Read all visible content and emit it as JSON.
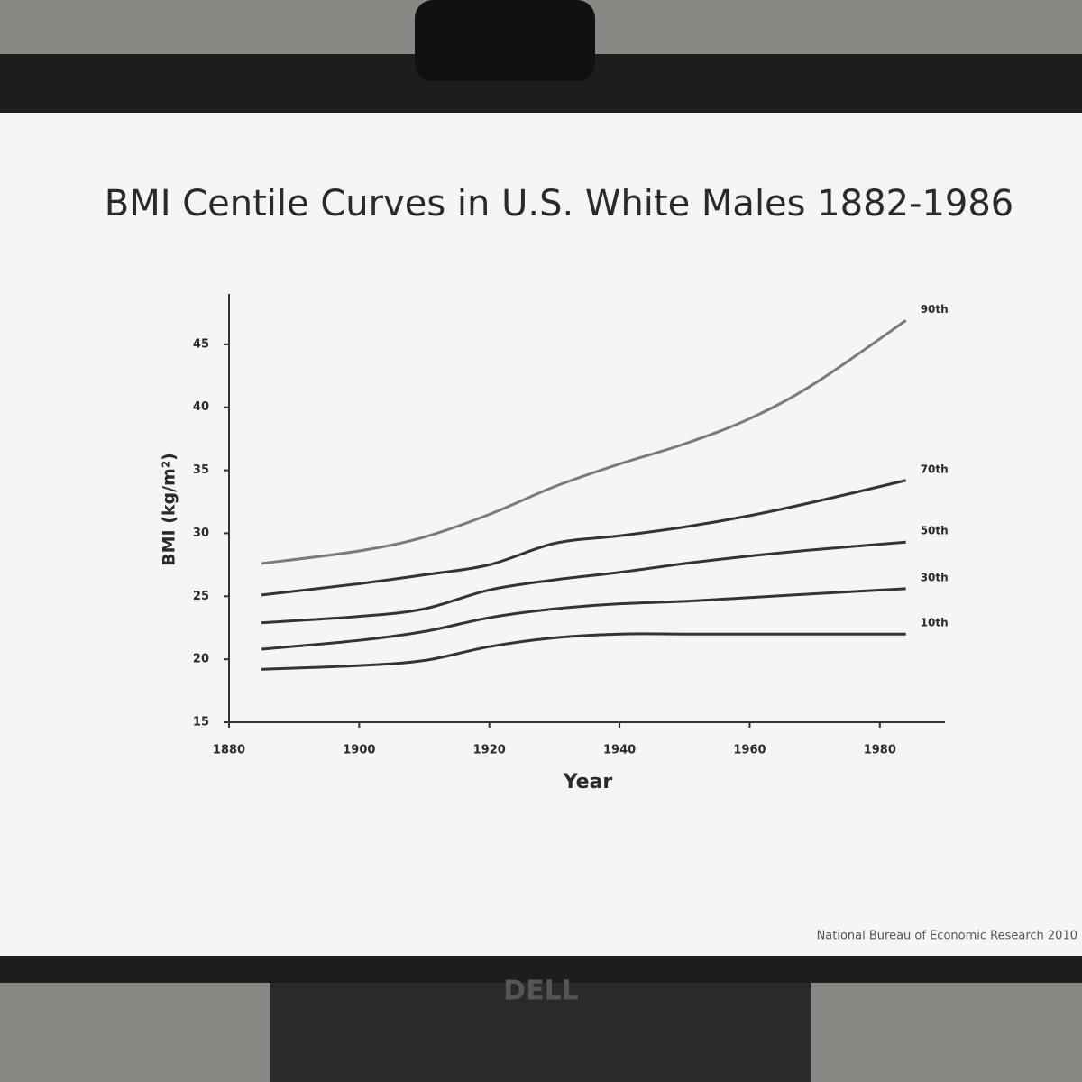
{
  "chart_data": {
    "type": "line",
    "title": "BMI Centile Curves in U.S. White Males 1882-1986",
    "x_label": "Year",
    "y_label": "BMI (kg/m²)",
    "source": "National Bureau of Economic Research 2010",
    "x": [
      1885,
      1900,
      1910,
      1920,
      1930,
      1940,
      1950,
      1960,
      1970,
      1984
    ],
    "series": [
      {
        "name": "90th",
        "color": "#7a7a7a",
        "values": [
          27.6,
          28.6,
          29.7,
          31.5,
          33.7,
          35.5,
          37.1,
          39.1,
          41.9,
          46.9
        ]
      },
      {
        "name": "70th",
        "color": "#333333",
        "values": [
          25.1,
          26.0,
          26.7,
          27.5,
          29.2,
          29.8,
          30.5,
          31.4,
          32.5,
          34.2
        ]
      },
      {
        "name": "50th",
        "color": "#333333",
        "values": [
          22.9,
          23.4,
          24.0,
          25.5,
          26.3,
          26.9,
          27.6,
          28.2,
          28.7,
          29.3
        ]
      },
      {
        "name": "30th",
        "color": "#333333",
        "values": [
          20.8,
          21.5,
          22.2,
          23.3,
          24.0,
          24.4,
          24.6,
          24.9,
          25.2,
          25.6
        ]
      },
      {
        "name": "10th",
        "color": "#333333",
        "values": [
          19.2,
          19.5,
          19.9,
          21.0,
          21.7,
          22.0,
          22.0,
          22.0,
          22.0,
          22.0
        ]
      }
    ],
    "xlim": [
      1880,
      1990
    ],
    "xticks": [
      1880,
      1900,
      1920,
      1940,
      1960,
      1980
    ],
    "ylim": [
      15,
      49
    ],
    "yticks": [
      15,
      20,
      25,
      30,
      35,
      40,
      45
    ]
  },
  "monitor_brand": "DELL"
}
